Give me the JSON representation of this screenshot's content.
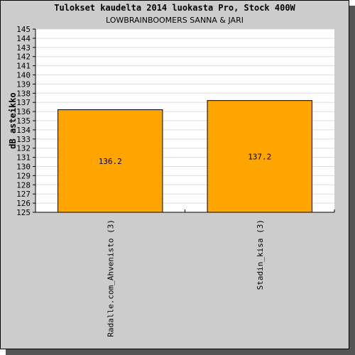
{
  "chart_data": {
    "type": "bar",
    "title": "Tulokset kaudelta 2014 luokasta Pro, Stock 400W",
    "subtitle": "LOWBRAINBOOMERS SANNA & JARI",
    "ylabel": "dB asteikko",
    "xlabel": "",
    "categories": [
      "Radalle.com_Ahvenisto (3)",
      "Stadin_kisa (3)"
    ],
    "values": [
      136.2,
      137.2
    ],
    "data_labels": [
      "136.2",
      "137.2"
    ],
    "ylim": [
      125,
      145
    ],
    "yticks": [
      "125",
      "126",
      "127",
      "128",
      "129",
      "130",
      "131",
      "132",
      "133",
      "134",
      "135",
      "136",
      "137",
      "138",
      "139",
      "140",
      "141",
      "142",
      "143",
      "144",
      "145"
    ],
    "grid": true,
    "legend": "none"
  },
  "colors": {
    "bar_fill": "#ffa500",
    "bar_stroke": "#000000",
    "panel_bg": "#cccccc",
    "plot_bg": "#ffffff",
    "grid": "#dddddd"
  }
}
